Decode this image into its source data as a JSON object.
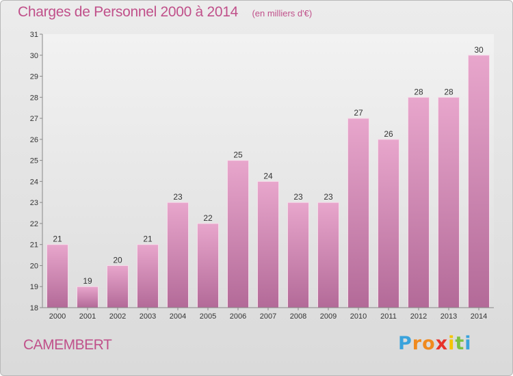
{
  "chart_data": {
    "type": "bar",
    "title": "Charges de Personnel 2000 à 2014",
    "unit_note": "(en milliers d'€)",
    "categories": [
      "2000",
      "2001",
      "2002",
      "2003",
      "2004",
      "2005",
      "2006",
      "2007",
      "2008",
      "2009",
      "2010",
      "2011",
      "2012",
      "2013",
      "2014"
    ],
    "values": [
      21,
      19,
      20,
      21,
      23,
      22,
      25,
      24,
      23,
      23,
      27,
      26,
      28,
      28,
      30
    ],
    "ylim": [
      18,
      31
    ],
    "yticks": [
      18,
      19,
      20,
      21,
      22,
      23,
      24,
      25,
      26,
      27,
      28,
      29,
      30,
      31
    ],
    "grid": false,
    "bar_color_top": "#e8a6cc",
    "bar_color_bottom": "#b36a98"
  },
  "commune": "CAMEMBERT",
  "brand": {
    "letters": [
      "P",
      "r",
      "o",
      "x",
      "i",
      "t",
      "i"
    ],
    "colors": [
      "#3aa3dc",
      "#f08a1e",
      "#f08a1e",
      "#e8332a",
      "#f5c400",
      "#7cc242",
      "#3aa3dc"
    ]
  }
}
